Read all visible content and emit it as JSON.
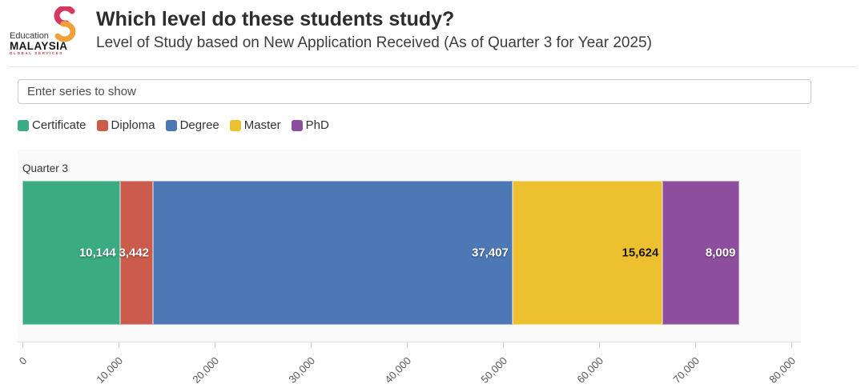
{
  "logo": {
    "line1": "Education",
    "line2": "MALAYSIA",
    "line3": "GLOBAL SERVICES"
  },
  "filter_input": {
    "placeholder": "Enter series to show",
    "value": ""
  },
  "chart_data": {
    "type": "bar",
    "orientation": "horizontal",
    "stacked": true,
    "title": "Which level do these students study?",
    "subtitle": "Level of Study based on New Application Received (As of Quarter 3 for Year 2025)",
    "row_label": "Quarter 3",
    "categories": [
      "Certificate",
      "Diploma",
      "Degree",
      "Master",
      "PhD"
    ],
    "values": [
      10144,
      3442,
      37407,
      15624,
      8009
    ],
    "series": [
      {
        "name": "Certificate",
        "value": 10144,
        "display": "10,144",
        "color": "#3aab83",
        "label_color": "#ffffff"
      },
      {
        "name": "Diploma",
        "value": 3442,
        "display": "3,442",
        "color": "#cb5c4b",
        "label_color": "#ffffff"
      },
      {
        "name": "Degree",
        "value": 37407,
        "display": "37,407",
        "color": "#4d78b6",
        "label_color": "#ffffff"
      },
      {
        "name": "Master",
        "value": 15624,
        "display": "15,624",
        "color": "#edc02f",
        "label_color": "#1a1a1a"
      },
      {
        "name": "PhD",
        "value": 8009,
        "display": "8,009",
        "color": "#8d4f9d",
        "label_color": "#ffffff"
      }
    ],
    "xlim": [
      0,
      80000
    ],
    "x_tick_values": [
      0,
      10000,
      20000,
      30000,
      40000,
      50000,
      60000,
      70000,
      80000
    ],
    "x_ticks": [
      "0",
      "10,000",
      "20,000",
      "30,000",
      "40,000",
      "50,000",
      "60,000",
      "70,000",
      "80,000"
    ],
    "legend_position": "top",
    "grid": false,
    "plot_background": "#fafafa"
  }
}
